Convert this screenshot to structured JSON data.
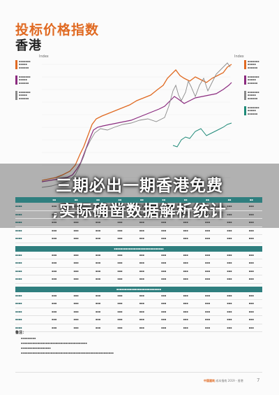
{
  "header": {
    "title": "投标价格指数",
    "subtitle": "香港"
  },
  "chart": {
    "left_axis_label": "Index",
    "right_axis_label": "Index"
  },
  "banner": {
    "line1": "三期必出一期香港免费",
    "line2": ",实际确凿数据解析统计"
  },
  "colors": {
    "accent": "#e06a22",
    "teal": "#2f7f7f",
    "purple": "#8b2b7f",
    "grey": "#8a8a8a",
    "green": "#1f8a78"
  },
  "footer": {
    "brand": "中国建筑",
    "text": "成本指南 2019 - 香港"
  },
  "page_number": "7",
  "notes": {
    "title": "备注："
  }
}
